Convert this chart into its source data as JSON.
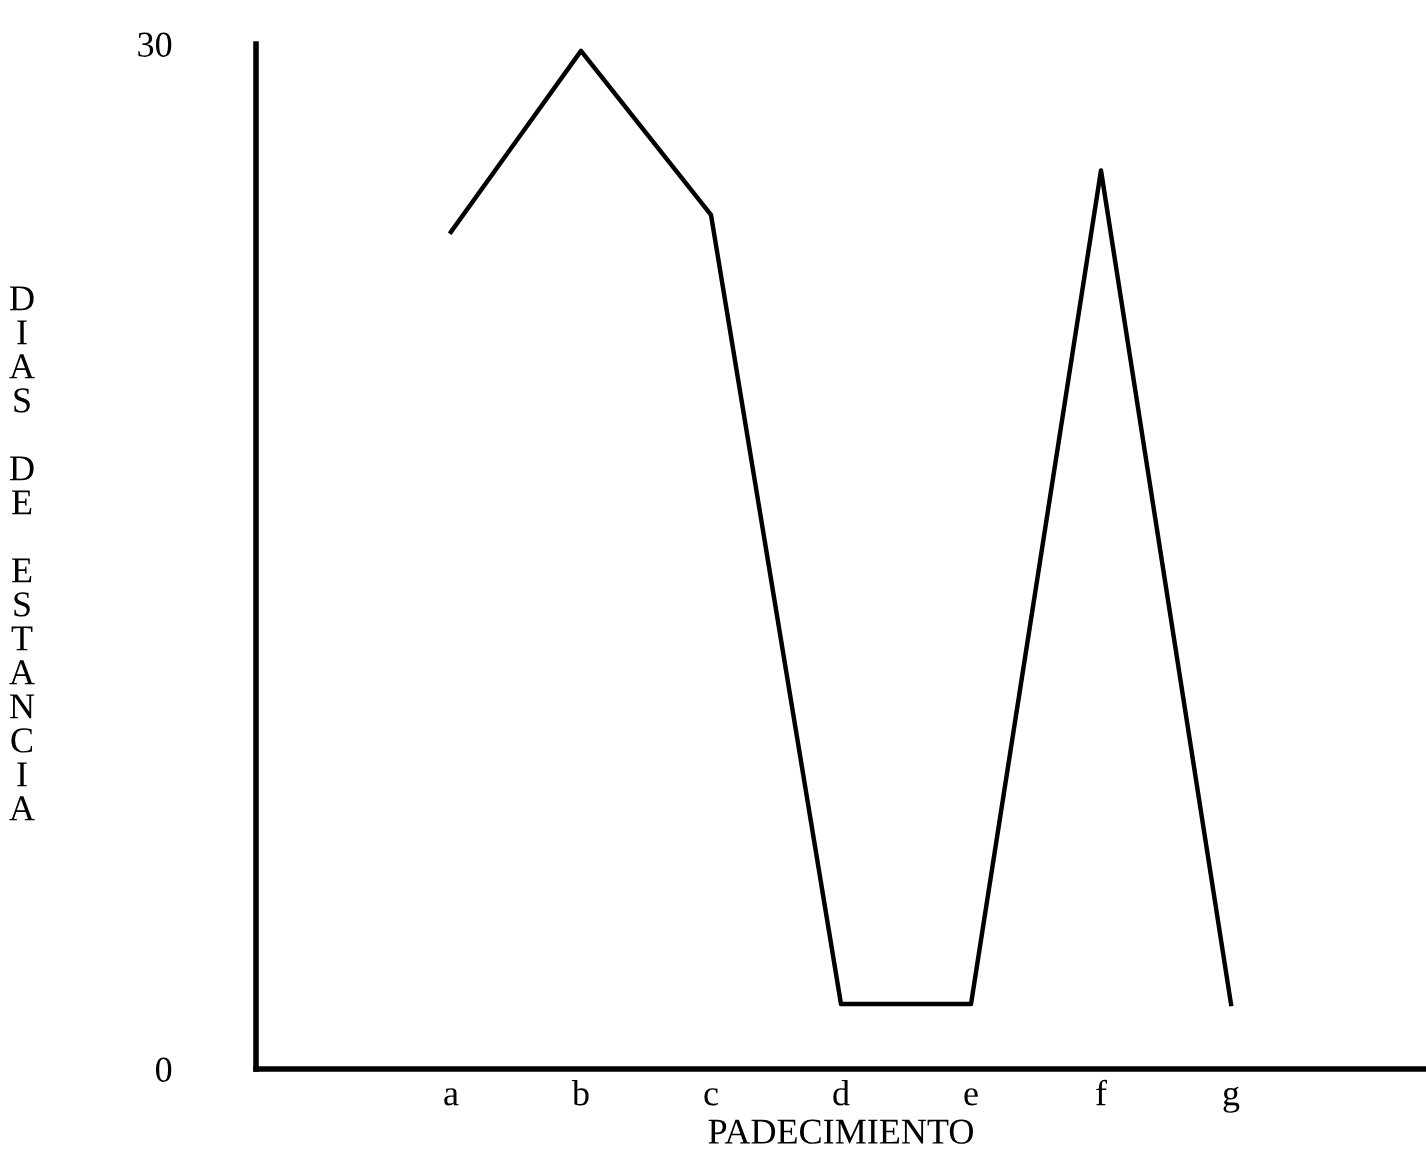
{
  "chart_data": {
    "type": "line",
    "xlabel": "PADECIMIENTO",
    "ylabel": "DIAS DE ESTANCIA",
    "categories": [
      "a",
      "b",
      "c",
      "d",
      "e",
      "f",
      "g"
    ],
    "series": [
      {
        "color": "#000000",
        "values": [
          24.5,
          29.8,
          25.0,
          1.9,
          1.9,
          26.3,
          1.9
        ]
      }
    ],
    "ylim": [
      0,
      30
    ],
    "yticks": [
      0,
      30
    ],
    "grid": false,
    "marker": "none",
    "line_style": "solid"
  }
}
